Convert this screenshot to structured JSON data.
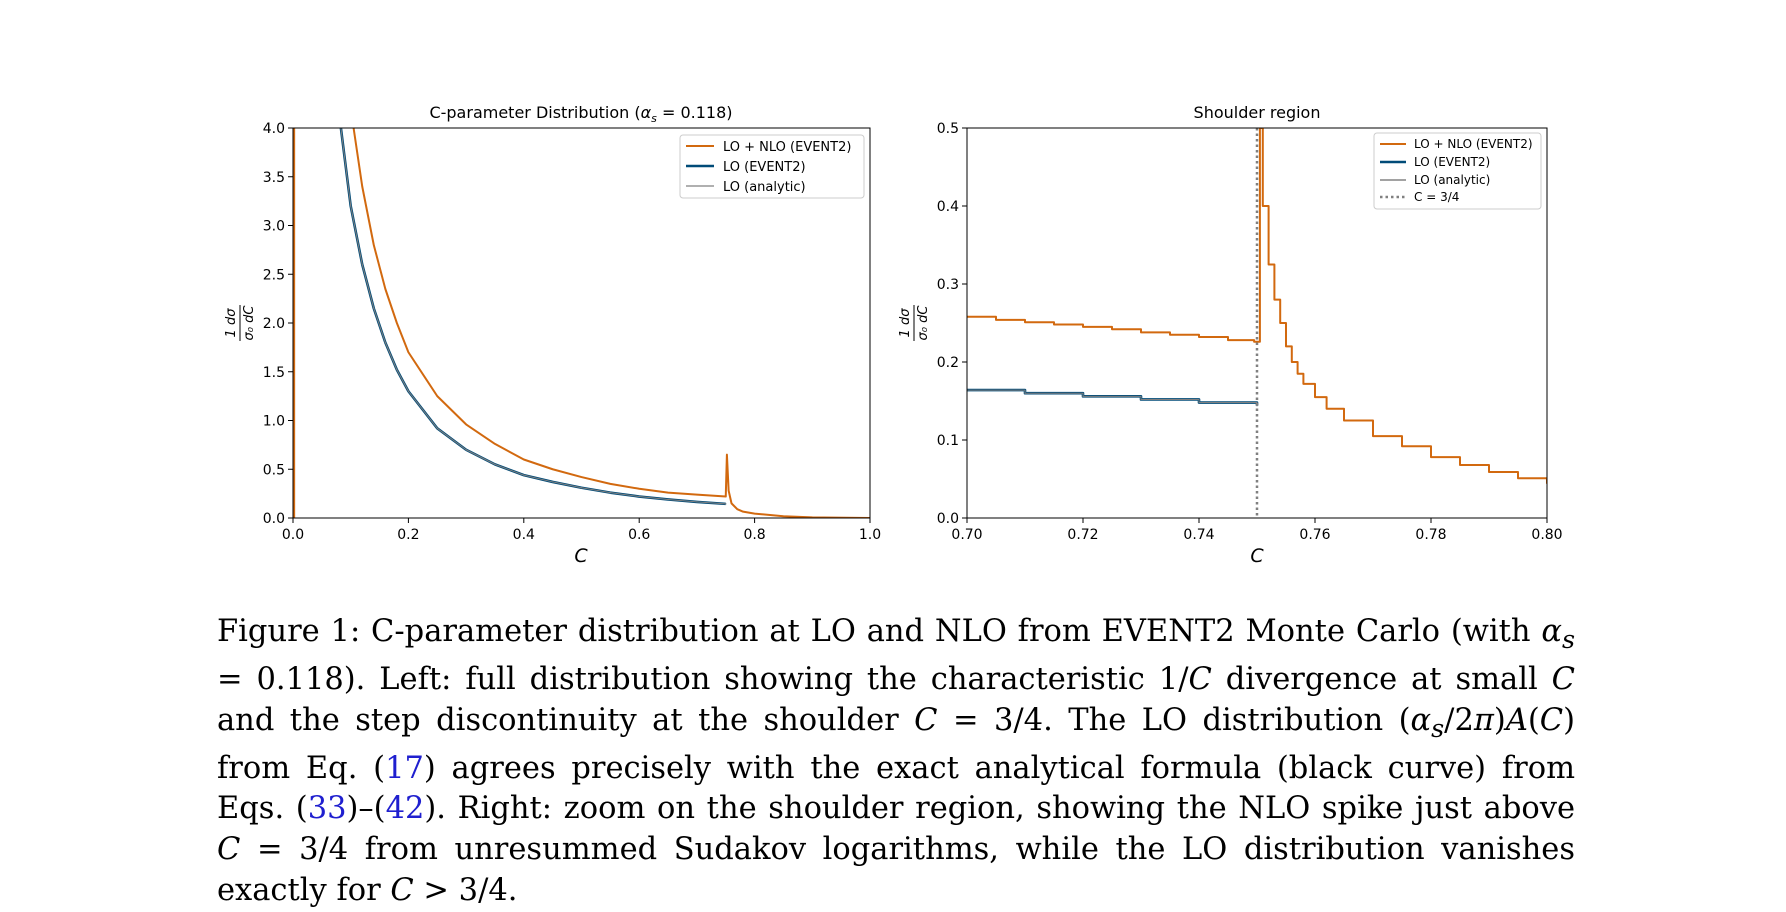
{
  "figure": {
    "colors": {
      "nlo": "#d2690f",
      "lo_event2": "#004b78",
      "lo_analytic": "#808080",
      "threshold": "#808080"
    },
    "left": {
      "title_prefix": "C-parameter Distribution (",
      "title_alpha": "α",
      "title_sub": "s",
      "title_suffix": " = 0.118)",
      "ylabel_num": "1  dσ",
      "ylabel_den": "σ₀ dC",
      "xlabel": "C",
      "xticks": [
        "0.0",
        "0.2",
        "0.4",
        "0.6",
        "0.8",
        "1.0"
      ],
      "yticks": [
        "0.0",
        "0.5",
        "1.0",
        "1.5",
        "2.0",
        "2.5",
        "3.0",
        "3.5",
        "4.0"
      ],
      "legend": [
        "LO + NLO (EVENT2)",
        "LO (EVENT2)",
        "LO (analytic)"
      ]
    },
    "right": {
      "title": "Shoulder region",
      "ylabel_num": "1  dσ",
      "ylabel_den": "σ₀ dC",
      "xlabel": "C",
      "xticks": [
        "0.70",
        "0.72",
        "0.74",
        "0.76",
        "0.78",
        "0.80"
      ],
      "yticks": [
        "0.0",
        "0.1",
        "0.2",
        "0.3",
        "0.4",
        "0.5"
      ],
      "legend": [
        "LO + NLO (EVENT2)",
        "LO (EVENT2)",
        "LO (analytic)",
        "C = 3/4"
      ]
    }
  },
  "chart_data": [
    {
      "type": "line",
      "title": "C-parameter Distribution (α_s = 0.118)",
      "xlabel": "C",
      "ylabel": "(1/σ0) dσ/dC",
      "xlim": [
        0.0,
        1.0
      ],
      "ylim": [
        0.0,
        4.0
      ],
      "legend_position": "top-right",
      "series": [
        {
          "name": "LO + NLO (EVENT2)",
          "x": [
            0.105,
            0.12,
            0.14,
            0.16,
            0.18,
            0.2,
            0.25,
            0.3,
            0.35,
            0.4,
            0.45,
            0.5,
            0.55,
            0.6,
            0.65,
            0.7,
            0.75,
            0.752,
            0.755,
            0.76,
            0.77,
            0.78,
            0.8,
            0.85,
            0.9,
            1.0
          ],
          "y": [
            4.0,
            3.4,
            2.8,
            2.35,
            2.0,
            1.7,
            1.25,
            0.96,
            0.76,
            0.6,
            0.5,
            0.42,
            0.35,
            0.3,
            0.26,
            0.24,
            0.22,
            0.65,
            0.28,
            0.15,
            0.09,
            0.065,
            0.045,
            0.018,
            0.006,
            0.0
          ]
        },
        {
          "name": "LO (EVENT2)",
          "x": [
            0.083,
            0.1,
            0.12,
            0.14,
            0.16,
            0.18,
            0.2,
            0.25,
            0.3,
            0.35,
            0.4,
            0.45,
            0.5,
            0.55,
            0.6,
            0.65,
            0.7,
            0.75
          ],
          "y": [
            4.0,
            3.2,
            2.6,
            2.15,
            1.8,
            1.52,
            1.3,
            0.92,
            0.7,
            0.55,
            0.44,
            0.37,
            0.31,
            0.26,
            0.22,
            0.19,
            0.165,
            0.145
          ]
        },
        {
          "name": "LO (analytic)",
          "x": [
            0.083,
            0.1,
            0.12,
            0.14,
            0.16,
            0.18,
            0.2,
            0.25,
            0.3,
            0.35,
            0.4,
            0.45,
            0.5,
            0.55,
            0.6,
            0.65,
            0.7,
            0.75
          ],
          "y": [
            4.0,
            3.2,
            2.6,
            2.15,
            1.8,
            1.52,
            1.3,
            0.92,
            0.7,
            0.55,
            0.44,
            0.37,
            0.31,
            0.26,
            0.22,
            0.19,
            0.165,
            0.145
          ]
        }
      ]
    },
    {
      "type": "line",
      "title": "Shoulder region",
      "xlabel": "C",
      "ylabel": "(1/σ0) dσ/dC",
      "xlim": [
        0.7,
        0.8
      ],
      "ylim": [
        0.0,
        0.5
      ],
      "legend_position": "top-right",
      "vline": {
        "name": "C = 3/4",
        "x": 0.75
      },
      "series": [
        {
          "name": "LO + NLO (EVENT2)",
          "x": [
            0.7,
            0.705,
            0.71,
            0.715,
            0.72,
            0.725,
            0.73,
            0.735,
            0.74,
            0.745,
            0.7495,
            0.7505,
            0.751,
            0.752,
            0.753,
            0.754,
            0.755,
            0.756,
            0.757,
            0.758,
            0.76,
            0.762,
            0.765,
            0.77,
            0.775,
            0.78,
            0.785,
            0.79,
            0.795,
            0.8
          ],
          "y": [
            0.258,
            0.254,
            0.251,
            0.248,
            0.245,
            0.242,
            0.238,
            0.235,
            0.232,
            0.228,
            0.226,
            0.5,
            0.4,
            0.325,
            0.28,
            0.25,
            0.22,
            0.2,
            0.185,
            0.172,
            0.155,
            0.14,
            0.125,
            0.105,
            0.092,
            0.078,
            0.068,
            0.059,
            0.051,
            0.044
          ]
        },
        {
          "name": "LO (EVENT2)",
          "x": [
            0.7,
            0.71,
            0.72,
            0.73,
            0.74,
            0.75
          ],
          "y": [
            0.164,
            0.16,
            0.156,
            0.152,
            0.148,
            0.144
          ]
        },
        {
          "name": "LO (analytic)",
          "x": [
            0.7,
            0.71,
            0.72,
            0.73,
            0.74,
            0.75
          ],
          "y": [
            0.164,
            0.16,
            0.156,
            0.152,
            0.148,
            0.144
          ]
        }
      ]
    }
  ],
  "caption": {
    "label": "Figure 1:",
    "t1": " C-parameter distribution at LO and NLO from EVENT2 Monte Carlo (with ",
    "alpha_s": "α",
    "alpha_sub": "s",
    "t2": " = 0.118). Left: full distribution showing the characteristic 1/",
    "c1": "C",
    "t3": " divergence at small ",
    "c2": "C",
    "t4": " and the step discontinuity at the shoulder ",
    "c3": "C",
    "t5": " = 3/4. The LO distribution (",
    "alpha2": "α",
    "alpha2_sub": "s",
    "t6": "/2",
    "pi": "π",
    "t7": ")",
    "a_sym": "A",
    "t8": "(",
    "c4": "C",
    "t9": ") from Eq. (",
    "ref1": "17",
    "t10": ") agrees precisely with the exact analytical formula (black curve) from Eqs. (",
    "ref2": "33",
    "t11": ")–(",
    "ref3": "42",
    "t12": "). Right: zoom on the shoulder region, showing the NLO spike just above ",
    "c5": "C",
    "t13": " = 3/4 from unresummed Sudakov logarithms, while the LO distribution vanishes exactly for ",
    "c6": "C",
    "t14": " > 3/4."
  }
}
